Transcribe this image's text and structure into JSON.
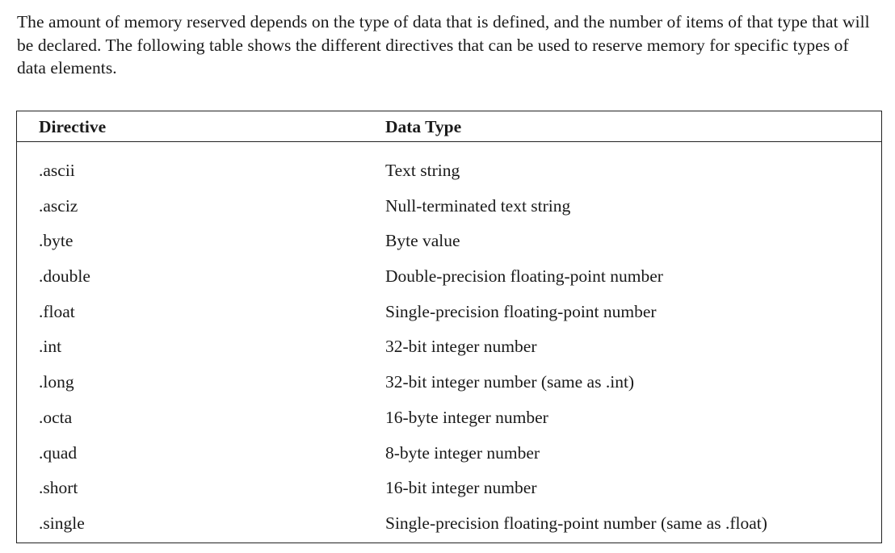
{
  "intro": "The amount of memory reserved depends on the type of data that is defined, and the number of items of that type that will be declared. The following table shows the different directives that can be used to reserve memory for specific types of data elements.",
  "table": {
    "headers": [
      "Directive",
      "Data Type"
    ],
    "rows": [
      [
        ".ascii",
        "Text string"
      ],
      [
        ".asciz",
        "Null-terminated text string"
      ],
      [
        ".byte",
        "Byte value"
      ],
      [
        ".double",
        "Double-precision floating-point number"
      ],
      [
        ".float",
        "Single-precision floating-point number"
      ],
      [
        ".int",
        "32-bit integer number"
      ],
      [
        ".long",
        "32-bit integer number (same as .int)"
      ],
      [
        ".octa",
        "16-byte integer number"
      ],
      [
        ".quad",
        "8-byte integer number"
      ],
      [
        ".short",
        "16-bit integer number"
      ],
      [
        ".single",
        "Single-precision floating-point number (same as .float)"
      ]
    ]
  }
}
